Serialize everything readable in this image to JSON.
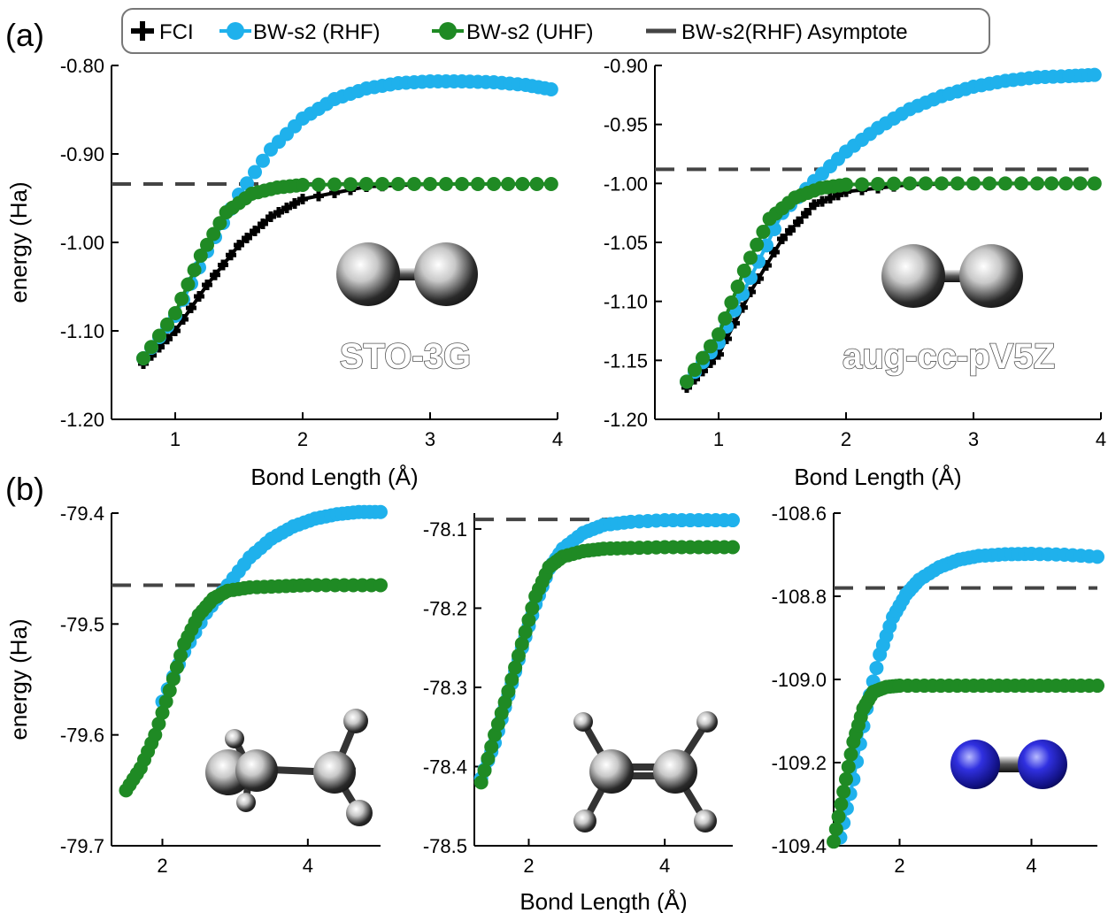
{
  "figure": {
    "panel_a_label": "(a)",
    "panel_b_label": "(b)"
  },
  "legend": {
    "items": [
      {
        "label": "FCI",
        "color": "#000000",
        "marker": "plus"
      },
      {
        "label": "BW-s2 (RHF)",
        "color": "#1fb1ec",
        "marker": "circle"
      },
      {
        "label": "BW-s2 (UHF)",
        "color": "#1f8a24",
        "marker": "circle"
      },
      {
        "label": "BW-s2(RHF) Asymptote",
        "color": "#444444",
        "marker": "dash"
      }
    ],
    "placement": "top-center"
  },
  "colors": {
    "fci": "#000000",
    "rhf": "#1fb1ec",
    "uhf": "#1f8a24",
    "asymptote": "#444444"
  },
  "chart_data": [
    {
      "type": "line",
      "panel": "(a)",
      "annotation": "STO-3G",
      "molecule_icon": "h2-molecule-icon",
      "xlabel": "Bond Length (Å)",
      "ylabel": "energy (Ha)",
      "xlim": [
        0.5,
        4
      ],
      "ylim": [
        -1.2,
        -0.8
      ],
      "xticks": [
        1,
        2,
        3,
        4
      ],
      "yticks": [
        -1.2,
        -1.1,
        -1.0,
        -0.9,
        -0.8
      ],
      "ytick_labels": [
        "-1.20",
        "-1.10",
        "-1.00",
        "-0.90",
        "-0.80"
      ],
      "asymptote": -0.934,
      "series": [
        {
          "name": "FCI",
          "x": [
            0.75,
            1.0,
            1.25,
            1.5,
            1.75,
            2.0,
            2.5,
            3.0,
            3.5,
            3.95
          ],
          "y": [
            -1.137,
            -1.1,
            -1.048,
            -1.003,
            -0.971,
            -0.951,
            -0.937,
            -0.934,
            -0.934,
            -0.934
          ]
        },
        {
          "name": "BW-s2 (RHF)",
          "x": [
            0.75,
            1.0,
            1.25,
            1.5,
            1.75,
            2.0,
            2.25,
            2.5,
            2.75,
            3.0,
            3.25,
            3.5,
            3.75,
            3.95
          ],
          "y": [
            -1.131,
            -1.083,
            -1.01,
            -0.946,
            -0.895,
            -0.86,
            -0.838,
            -0.826,
            -0.82,
            -0.818,
            -0.818,
            -0.819,
            -0.822,
            -0.827
          ]
        },
        {
          "name": "BW-s2 (UHF)",
          "x": [
            0.75,
            1.0,
            1.2,
            1.4,
            1.6,
            1.8,
            2.0,
            2.5,
            3.0,
            3.5,
            3.95
          ],
          "y": [
            -1.131,
            -1.08,
            -1.015,
            -0.966,
            -0.945,
            -0.938,
            -0.935,
            -0.934,
            -0.934,
            -0.934,
            -0.934
          ]
        }
      ]
    },
    {
      "type": "line",
      "panel": "(a)",
      "annotation": "aug-cc-pV5Z",
      "molecule_icon": "h2-molecule-icon",
      "xlabel": "Bond Length (Å)",
      "ylabel": "",
      "xlim": [
        0.5,
        4
      ],
      "ylim": [
        -1.2,
        -0.9
      ],
      "xticks": [
        1,
        2,
        3,
        4
      ],
      "yticks": [
        -1.2,
        -1.15,
        -1.1,
        -1.05,
        -1.0,
        -0.95,
        -0.9
      ],
      "ytick_labels": [
        "-1.20",
        "-1.15",
        "-1.10",
        "-1.05",
        "-1.00",
        "-0.95",
        "-0.90"
      ],
      "asymptote": -0.988,
      "series": [
        {
          "name": "FCI",
          "x": [
            0.75,
            1.0,
            1.25,
            1.5,
            1.75,
            2.0,
            2.5,
            3.0,
            3.5,
            3.95
          ],
          "y": [
            -1.173,
            -1.145,
            -1.092,
            -1.047,
            -1.018,
            -1.007,
            -1.001,
            -1.0,
            -1.0,
            -1.0
          ]
        },
        {
          "name": "BW-s2 (RHF)",
          "x": [
            0.75,
            1.0,
            1.25,
            1.5,
            1.75,
            2.0,
            2.25,
            2.5,
            2.75,
            3.0,
            3.25,
            3.5,
            3.75,
            3.95
          ],
          "y": [
            -1.168,
            -1.135,
            -1.08,
            -1.025,
            -0.998,
            -0.973,
            -0.953,
            -0.937,
            -0.926,
            -0.918,
            -0.913,
            -0.91,
            -0.909,
            -0.908
          ]
        },
        {
          "name": "BW-s2 (UHF)",
          "x": [
            0.75,
            1.0,
            1.2,
            1.4,
            1.6,
            1.8,
            2.0,
            2.5,
            3.0,
            3.5,
            3.95
          ],
          "y": [
            -1.168,
            -1.128,
            -1.074,
            -1.03,
            -1.012,
            -1.004,
            -1.001,
            -1.0,
            -1.0,
            -1.0,
            -1.0
          ]
        }
      ]
    },
    {
      "type": "line",
      "panel": "(b)",
      "molecule_icon": "ethane-molecule-icon",
      "xlabel": "",
      "ylabel": "energy (Ha)",
      "xlim": [
        1.3,
        5
      ],
      "ylim": [
        -79.7,
        -79.4
      ],
      "xticks": [
        2,
        4
      ],
      "yticks": [
        -79.7,
        -79.6,
        -79.5,
        -79.4
      ],
      "ytick_labels": [
        "-79.7",
        "-79.6",
        "-79.5",
        "-79.4"
      ],
      "asymptote": -79.465,
      "series": [
        {
          "name": "BW-s2 (RHF)",
          "x": [
            2.0,
            2.3,
            2.6,
            2.9,
            3.2,
            3.5,
            3.8,
            4.1,
            4.4,
            4.7,
            5.0
          ],
          "y": [
            -79.57,
            -79.525,
            -79.49,
            -79.465,
            -79.44,
            -79.423,
            -79.412,
            -79.405,
            -79.401,
            -79.399,
            -79.399
          ]
        },
        {
          "name": "BW-s2 (UHF)",
          "x": [
            1.5,
            1.7,
            1.9,
            2.1,
            2.3,
            2.5,
            2.7,
            2.9,
            3.2,
            3.6,
            4.0,
            4.5,
            5.0
          ],
          "y": [
            -79.65,
            -79.63,
            -79.6,
            -79.56,
            -79.518,
            -79.492,
            -79.477,
            -79.47,
            -79.467,
            -79.466,
            -79.465,
            -79.465,
            -79.465
          ]
        }
      ]
    },
    {
      "type": "line",
      "panel": "(b)",
      "molecule_icon": "ethylene-molecule-icon",
      "xlabel": "Bond Length (Å)",
      "ylabel": "",
      "xlim": [
        1.2,
        5
      ],
      "ylim": [
        -78.5,
        -78.08
      ],
      "xticks": [
        2,
        4
      ],
      "yticks": [
        -78.5,
        -78.4,
        -78.3,
        -78.2,
        -78.1
      ],
      "ytick_labels": [
        "-78.5",
        "-78.4",
        "-78.3",
        "-78.2",
        "-78.1"
      ],
      "asymptote": -78.088,
      "series": [
        {
          "name": "BW-s2 (RHF)",
          "x": [
            1.3,
            1.5,
            1.7,
            1.9,
            2.1,
            2.3,
            2.5,
            2.8,
            3.1,
            3.5,
            4.0,
            4.5,
            5.0
          ],
          "y": [
            -78.415,
            -78.37,
            -78.31,
            -78.25,
            -78.195,
            -78.15,
            -78.125,
            -78.105,
            -78.095,
            -78.091,
            -78.089,
            -78.089,
            -78.089
          ]
        },
        {
          "name": "BW-s2 (UHF)",
          "x": [
            1.3,
            1.5,
            1.7,
            1.9,
            2.1,
            2.3,
            2.5,
            2.8,
            3.1,
            3.5,
            4.0,
            4.5,
            5.0
          ],
          "y": [
            -78.42,
            -78.36,
            -78.305,
            -78.245,
            -78.185,
            -78.148,
            -78.135,
            -78.128,
            -78.125,
            -78.124,
            -78.123,
            -78.123,
            -78.123
          ]
        }
      ]
    },
    {
      "type": "line",
      "panel": "(b)",
      "molecule_icon": "n2-molecule-icon",
      "xlabel": "",
      "ylabel": "",
      "xlim": [
        1.0,
        5
      ],
      "ylim": [
        -109.4,
        -108.6
      ],
      "xticks": [
        2,
        4
      ],
      "yticks": [
        -109.4,
        -109.2,
        -109.0,
        -108.8,
        -108.6
      ],
      "ytick_labels": [
        "-109.4",
        "-109.2",
        "-109.0",
        "-108.8",
        "-108.6"
      ],
      "asymptote": -108.78,
      "series": [
        {
          "name": "BW-s2 (RHF)",
          "x": [
            1.1,
            1.3,
            1.5,
            1.7,
            1.9,
            2.1,
            2.3,
            2.6,
            2.9,
            3.2,
            3.6,
            4.0,
            4.5,
            5.0
          ],
          "y": [
            -109.38,
            -109.24,
            -109.07,
            -108.94,
            -108.85,
            -108.795,
            -108.76,
            -108.73,
            -108.712,
            -108.703,
            -108.699,
            -108.698,
            -108.7,
            -108.705
          ]
        },
        {
          "name": "BW-s2 (UHF)",
          "x": [
            1.0,
            1.15,
            1.3,
            1.45,
            1.6,
            1.8,
            2.0,
            2.5,
            3.0,
            3.5,
            4.0,
            4.5,
            5.0
          ],
          "y": [
            -109.39,
            -109.27,
            -109.15,
            -109.07,
            -109.03,
            -109.018,
            -109.015,
            -109.015,
            -109.015,
            -109.015,
            -109.015,
            -109.015,
            -109.015
          ]
        }
      ]
    }
  ]
}
